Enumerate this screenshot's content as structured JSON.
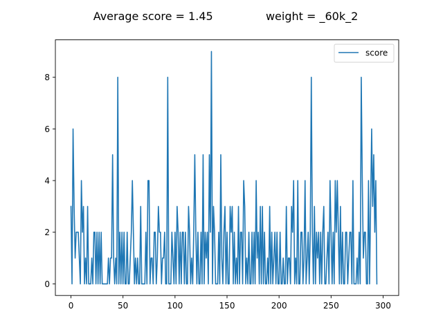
{
  "chart_data": {
    "type": "line",
    "title": "Average score = 1.45               weight = _60k_2",
    "xlabel": "",
    "ylabel": "",
    "xlim": [
      -15,
      315
    ],
    "ylim": [
      -0.45,
      9.45
    ],
    "x_ticks": [
      0,
      50,
      100,
      150,
      200,
      250,
      300
    ],
    "y_ticks": [
      0,
      2,
      4,
      6,
      8
    ],
    "grid": false,
    "legend_position": "top-right",
    "series": [
      {
        "name": "score",
        "color": "#1f77b4",
        "x_start": 0,
        "x_step": 1,
        "values": [
          3,
          0,
          6,
          3,
          1,
          2,
          2,
          2,
          1,
          0,
          4,
          2,
          3,
          0,
          1,
          0,
          3,
          0,
          0,
          0,
          1,
          0,
          2,
          2,
          0,
          2,
          0,
          2,
          0,
          2,
          0,
          0,
          0,
          0,
          0,
          0,
          1,
          0,
          1,
          1,
          5,
          1,
          0,
          1,
          0,
          8,
          0,
          2,
          0,
          2,
          0,
          2,
          0,
          0,
          2,
          0,
          0,
          1,
          2,
          4,
          2,
          0,
          1,
          0,
          1,
          0,
          0,
          3,
          0,
          0,
          0,
          0,
          2,
          0,
          4,
          4,
          0,
          1,
          1,
          0,
          2,
          2,
          0,
          1,
          3,
          2,
          2,
          0,
          1,
          1,
          2,
          0,
          0,
          8,
          0,
          0,
          0,
          2,
          1,
          0,
          2,
          0,
          3,
          2,
          0,
          2,
          0,
          2,
          2,
          0,
          2,
          0,
          0,
          3,
          2,
          0,
          1,
          0,
          2,
          5,
          2,
          0,
          2,
          0,
          0,
          2,
          0,
          5,
          0,
          2,
          1,
          2,
          0,
          5,
          2,
          9,
          0,
          3,
          2,
          0,
          0,
          0,
          2,
          0,
          5,
          1,
          0,
          2,
          3,
          0,
          2,
          0,
          0,
          3,
          2,
          3,
          0,
          2,
          0,
          1,
          0,
          3,
          0,
          2,
          2,
          0,
          4,
          3,
          0,
          1,
          0,
          2,
          0,
          0,
          2,
          0,
          2,
          0,
          4,
          1,
          2,
          0,
          3,
          0,
          3,
          0,
          2,
          0,
          0,
          1,
          0,
          3,
          0,
          2,
          0,
          1,
          2,
          0,
          2,
          0,
          0,
          2,
          0,
          0,
          1,
          0,
          0,
          3,
          0,
          1,
          1,
          0,
          3,
          2,
          4,
          0,
          1,
          0,
          4,
          0,
          0,
          2,
          2,
          0,
          1,
          4,
          0,
          1,
          2,
          0,
          2,
          8,
          2,
          0,
          3,
          0,
          2,
          1,
          2,
          0,
          2,
          0,
          2,
          3,
          0,
          0,
          1,
          2,
          0,
          4,
          2,
          0,
          2,
          0,
          4,
          2,
          4,
          2,
          0,
          3,
          0,
          2,
          0,
          0,
          2,
          2,
          0,
          1,
          2,
          2,
          0,
          4,
          0,
          0,
          0,
          1,
          0,
          2,
          0,
          8,
          4,
          1,
          2,
          2,
          0,
          0,
          4,
          0,
          3,
          6,
          3,
          5,
          2,
          4,
          0
        ]
      }
    ]
  }
}
